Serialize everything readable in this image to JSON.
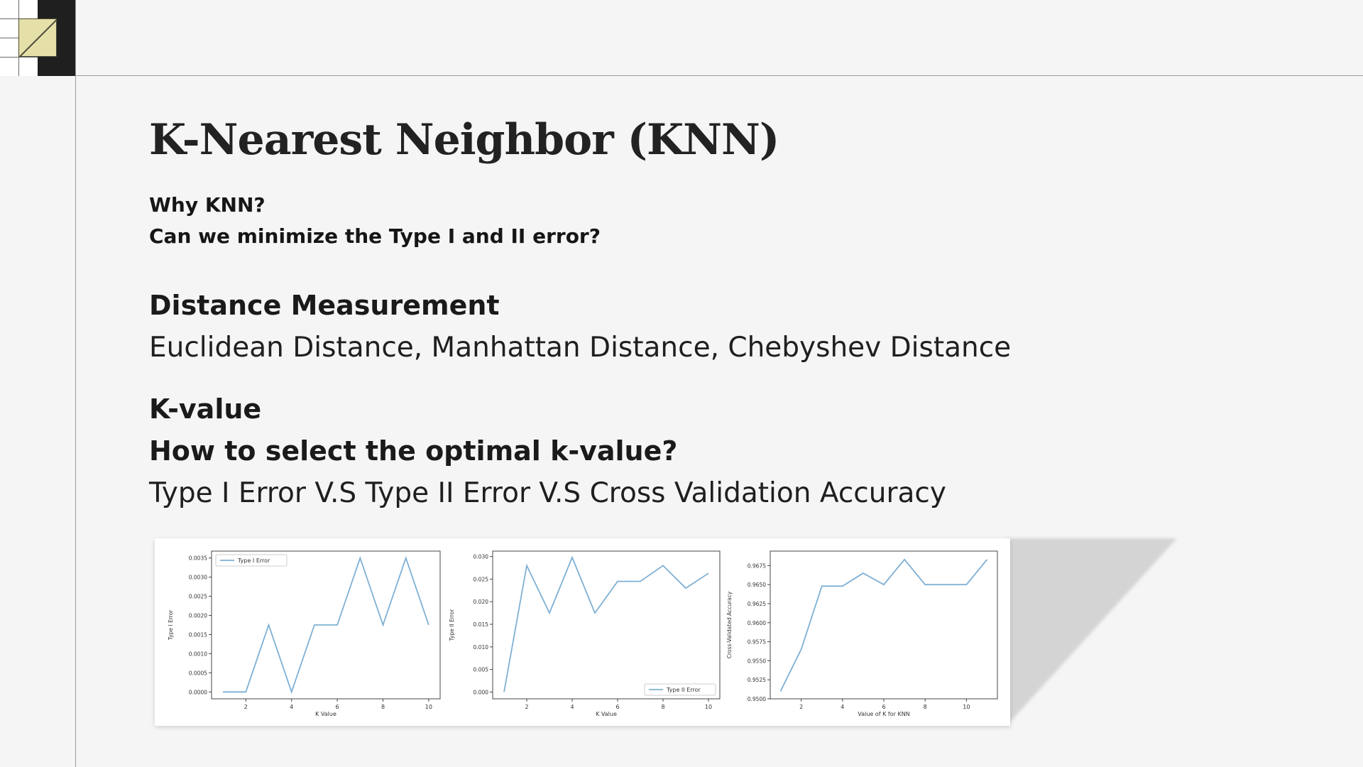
{
  "slide": {
    "title": "K-Nearest Neighbor (KNN)",
    "question1": "Why KNN?",
    "question2": "Can we minimize the Type I and II error?",
    "distance_heading": "Distance Measurement",
    "distance_text": "Euclidean Distance, Manhattan Distance, Chebyshev Distance",
    "k_heading": "K-value",
    "k_question": "How to select the optimal k-value?",
    "comparison_text": "Type I Error V.S Type II Error V.S Cross Validation Accuracy"
  },
  "colors": {
    "line": "#7fb0d4",
    "axis": "#444444",
    "logo_yellow": "#e5e0a8"
  },
  "chart_data": [
    {
      "type": "line",
      "x": [
        1,
        2,
        3,
        4,
        5,
        6,
        7,
        8,
        9,
        10
      ],
      "series": [
        {
          "name": "Type I Error",
          "values": [
            0.0,
            0.0,
            0.00175,
            0.0,
            0.00175,
            0.00175,
            0.0035,
            0.00175,
            0.0035,
            0.00175
          ]
        }
      ],
      "xlabel": "K Value",
      "ylabel": "Type I Error",
      "xlim": [
        0.5,
        10.5
      ],
      "ylim": [
        -0.00018,
        0.00368
      ],
      "xticks": [
        2,
        4,
        6,
        8,
        10
      ],
      "yticks": [
        0.0,
        0.0005,
        0.001,
        0.0015,
        0.002,
        0.0025,
        0.003,
        0.0035
      ],
      "ytick_labels": [
        "0.0000",
        "0.0005",
        "0.0010",
        "0.0015",
        "0.0020",
        "0.0025",
        "0.0030",
        "0.0035"
      ],
      "legend": "top-left",
      "grid": false
    },
    {
      "type": "line",
      "x": [
        1,
        2,
        3,
        4,
        5,
        6,
        7,
        8,
        9,
        10
      ],
      "series": [
        {
          "name": "Type II Error",
          "values": [
            0.0,
            0.028,
            0.0175,
            0.0298,
            0.0175,
            0.0245,
            0.0245,
            0.028,
            0.023,
            0.0263
          ]
        }
      ],
      "xlabel": "K Value",
      "ylabel": "Type II Error",
      "xlim": [
        0.5,
        10.5
      ],
      "ylim": [
        -0.0015,
        0.0312
      ],
      "xticks": [
        2,
        4,
        6,
        8,
        10
      ],
      "yticks": [
        0.0,
        0.005,
        0.01,
        0.015,
        0.02,
        0.025,
        0.03
      ],
      "ytick_labels": [
        "0.000",
        "0.005",
        "0.010",
        "0.015",
        "0.020",
        "0.025",
        "0.030"
      ],
      "legend": "bottom-right",
      "grid": false
    },
    {
      "type": "line",
      "x": [
        1,
        2,
        3,
        4,
        5,
        6,
        7,
        8,
        9,
        10,
        11
      ],
      "series": [
        {
          "values": [
            0.951,
            0.9565,
            0.9648,
            0.9648,
            0.9665,
            0.965,
            0.9683,
            0.965,
            0.965,
            0.965,
            0.9683
          ]
        }
      ],
      "xlabel": "Value of K for KNN",
      "ylabel": "Cross-Validated Accuracy",
      "xlim": [
        0.5,
        11.5
      ],
      "ylim": [
        0.95,
        0.9694
      ],
      "xticks": [
        2,
        4,
        6,
        8,
        10
      ],
      "yticks": [
        0.95,
        0.9525,
        0.955,
        0.9575,
        0.96,
        0.9625,
        0.965,
        0.9675
      ],
      "ytick_labels": [
        "0.9500",
        "0.9525",
        "0.9550",
        "0.9575",
        "0.9600",
        "0.9625",
        "0.9650",
        "0.9675"
      ],
      "legend": "none",
      "grid": false
    }
  ]
}
